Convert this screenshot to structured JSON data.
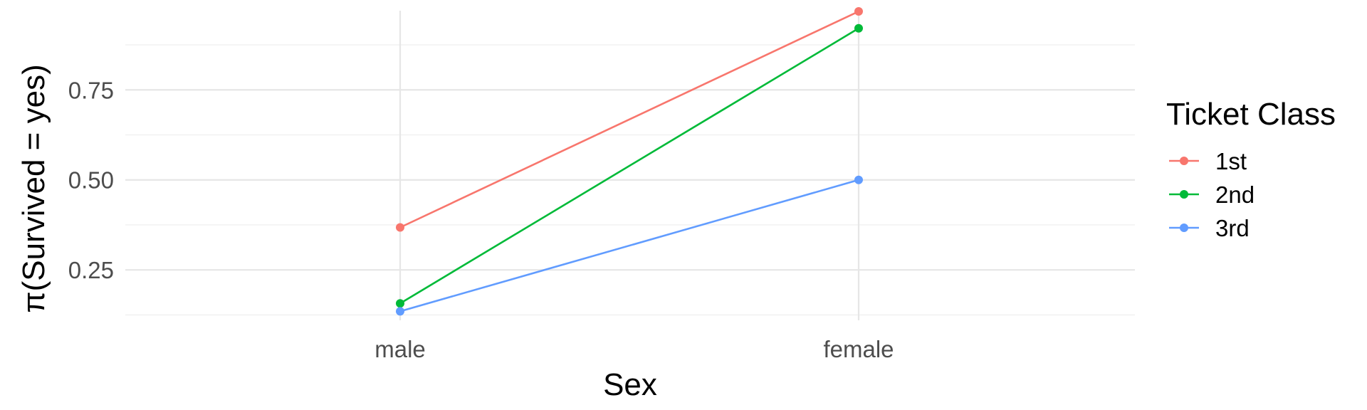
{
  "chart_data": {
    "type": "line",
    "xlabel": "Sex",
    "ylabel": "π(Survived = yes)",
    "categories": [
      "male",
      "female"
    ],
    "ylim": [
      0.11,
      0.97
    ],
    "yticks": [
      0.25,
      0.5,
      0.75
    ],
    "ytick_labels": [
      "0.25",
      "0.50",
      "0.75"
    ],
    "grid": true,
    "legend": {
      "title": "Ticket Class",
      "position": "right"
    },
    "series": [
      {
        "name": "1st",
        "color": "#F8766D",
        "values": [
          0.368,
          0.968
        ]
      },
      {
        "name": "2nd",
        "color": "#00BA38",
        "values": [
          0.157,
          0.921
        ]
      },
      {
        "name": "3rd",
        "color": "#619CFF",
        "values": [
          0.135,
          0.5
        ]
      }
    ]
  }
}
